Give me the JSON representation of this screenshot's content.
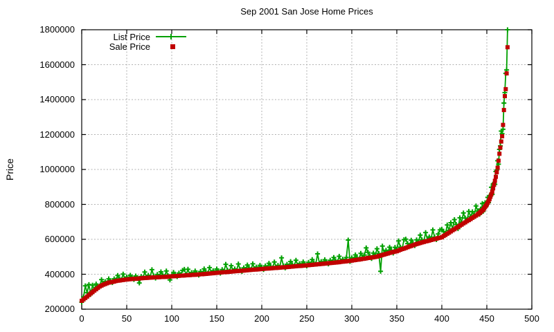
{
  "chart_data": {
    "type": "scatter",
    "title": "Sep 2001 San Jose Home Prices",
    "xlabel": "",
    "ylabel": "Price",
    "xlim": [
      0,
      500
    ],
    "ylim": [
      200000,
      1800000
    ],
    "x_ticks": [
      0,
      50,
      100,
      150,
      200,
      250,
      300,
      350,
      400,
      450,
      500
    ],
    "y_ticks": [
      200000,
      400000,
      600000,
      800000,
      1000000,
      1200000,
      1400000,
      1600000,
      1800000
    ],
    "grid": true,
    "grid_color": "#b0b0b0",
    "border_color": "#000000",
    "legend_position": "top-left-inside",
    "x": [
      0,
      2,
      4,
      6,
      8,
      10,
      12,
      14,
      16,
      18,
      20,
      22,
      24,
      26,
      28,
      30,
      32,
      34,
      36,
      38,
      40,
      42,
      44,
      46,
      48,
      50,
      52,
      54,
      56,
      58,
      60,
      62,
      64,
      66,
      68,
      70,
      72,
      74,
      76,
      78,
      80,
      82,
      84,
      86,
      88,
      90,
      92,
      94,
      96,
      98,
      100,
      102,
      104,
      106,
      108,
      110,
      112,
      114,
      116,
      118,
      120,
      122,
      124,
      126,
      128,
      130,
      132,
      134,
      136,
      138,
      140,
      142,
      144,
      146,
      148,
      150,
      152,
      154,
      156,
      158,
      160,
      162,
      164,
      166,
      168,
      170,
      172,
      174,
      176,
      178,
      180,
      182,
      184,
      186,
      188,
      190,
      192,
      194,
      196,
      198,
      200,
      202,
      204,
      206,
      208,
      210,
      212,
      214,
      216,
      218,
      220,
      222,
      224,
      226,
      228,
      230,
      232,
      234,
      236,
      238,
      240,
      242,
      244,
      246,
      248,
      250,
      252,
      254,
      256,
      258,
      260,
      262,
      264,
      266,
      268,
      270,
      272,
      274,
      276,
      278,
      280,
      282,
      284,
      286,
      288,
      290,
      292,
      294,
      296,
      298,
      300,
      302,
      304,
      306,
      308,
      310,
      312,
      314,
      316,
      318,
      320,
      322,
      324,
      326,
      328,
      330,
      332,
      334,
      336,
      338,
      340,
      342,
      344,
      346,
      348,
      350,
      352,
      354,
      356,
      358,
      360,
      362,
      364,
      366,
      368,
      370,
      372,
      374,
      376,
      378,
      380,
      382,
      384,
      386,
      388,
      390,
      392,
      394,
      396,
      398,
      400,
      402,
      404,
      406,
      408,
      410,
      412,
      414,
      416,
      418,
      420,
      422,
      424,
      426,
      428,
      430,
      432,
      434,
      436,
      438,
      440,
      441,
      442,
      443,
      444,
      445,
      446,
      447,
      448,
      449,
      450,
      451,
      452,
      453,
      454,
      455,
      456,
      457,
      458,
      459,
      460,
      461,
      462,
      463,
      464,
      465,
      466,
      467,
      468,
      469,
      470,
      471,
      472,
      473
    ],
    "series": [
      {
        "name": "List Price",
        "style": "linespoints",
        "marker": "plus",
        "color": "#00a000",
        "values": [
          240000,
          270000,
          334000,
          294000,
          341000,
          286000,
          338000,
          312000,
          344000,
          332000,
          332000,
          369000,
          345000,
          358000,
          351000,
          374000,
          362000,
          352000,
          374000,
          367000,
          393000,
          374000,
          368000,
          401000,
          374000,
          384000,
          374000,
          394000,
          381000,
          370000,
          390000,
          381000,
          350000,
          387000,
          380000,
          413000,
          384000,
          394000,
          384000,
          426000,
          390000,
          378000,
          399000,
          389000,
          414000,
          394000,
          387000,
          419000,
          391000,
          367000,
          391000,
          411000,
          397000,
          386000,
          407000,
          398000,
          422000,
          428000,
          396000,
          429000,
          400000,
          410000,
          400000,
          419000,
          406000,
          395000,
          416000,
          406000,
          431000,
          412000,
          405000,
          438000,
          410000,
          420000,
          410000,
          430000,
          417000,
          406000,
          427000,
          418000,
          457000,
          423000,
          416000,
          449000,
          421000,
          431000,
          421000,
          459000,
          427000,
          416000,
          437000,
          428000,
          453000,
          434000,
          427000,
          460000,
          432000,
          441000,
          431000,
          451000,
          438000,
          427000,
          448000,
          439000,
          463000,
          444000,
          437000,
          470000,
          441000,
          451000,
          441000,
          494000,
          448000,
          436000,
          457000,
          448000,
          473000,
          454000,
          447000,
          480000,
          452000,
          461000,
          451000,
          471000,
          458000,
          447000,
          468000,
          459000,
          484000,
          465000,
          458000,
          517000,
          463000,
          473000,
          463000,
          483000,
          470000,
          459000,
          480000,
          471000,
          496000,
          477000,
          470000,
          503000,
          476000,
          486000,
          476000,
          496000,
          596000,
          473000,
          494000,
          486000,
          511000,
          493000,
          486000,
          520000,
          496000,
          510000,
          551000,
          526000,
          506000,
          490000,
          521000,
          508000,
          546000,
          519000,
          417000,
          561000,
          521000,
          537000,
          524000,
          555000,
          537000,
          521000,
          554000,
          541000,
          591000,
          555000,
          547000,
          598000,
          601000,
          576000,
          564000,
          595000,
          578000,
          564000,
          597000,
          585000,
          624000,
          597000,
          588000,
          639000,
          598000,
          614000,
          601000,
          654000,
          613000,
          598000,
          631000,
          654000,
          657000,
          644000,
          630000,
          682000,
          651000,
          695000,
          660000,
          713000,
          685000,
          661000,
          723000,
          699000,
          751000,
          722000,
          709000,
          760000,
          729000,
          758000,
          737000,
          791000,
          762000,
          759000,
          743000,
          774000,
          766000,
          805000,
          760000,
          792000,
          810000,
          787000,
          812000,
          840000,
          810000,
          850000,
          852000,
          898000,
          857000,
          917000,
          922000,
          915000,
          988000,
          996000,
          1050000,
          1030000,
          1115000,
          1135000,
          1220000,
          1205000,
          1230000,
          1380000,
          1440000,
          1550000,
          1570000,
          1800000
        ]
      },
      {
        "name": "Sale Price",
        "style": "points",
        "marker": "square",
        "color": "#c00000",
        "values": [
          248000,
          256000,
          264000,
          272000,
          281000,
          290000,
          298000,
          306000,
          314000,
          322000,
          330000,
          335000,
          340000,
          344000,
          348000,
          352000,
          354000,
          356000,
          358000,
          361000,
          363000,
          364000,
          366000,
          367000,
          369000,
          370000,
          371000,
          372000,
          373000,
          374000,
          374000,
          375000,
          376000,
          377000,
          378000,
          379000,
          379000,
          380000,
          381000,
          381000,
          382000,
          382000,
          383000,
          383000,
          384000,
          384000,
          385000,
          385000,
          386000,
          387000,
          388000,
          389000,
          389000,
          390000,
          391000,
          392000,
          392000,
          393000,
          394000,
          395000,
          395000,
          396000,
          397000,
          397000,
          398000,
          399000,
          400000,
          400000,
          401000,
          402000,
          403000,
          404000,
          405000,
          406000,
          407000,
          408000,
          409000,
          410000,
          411000,
          412000,
          412000,
          413000,
          414000,
          415000,
          416000,
          417000,
          418000,
          419000,
          419000,
          420000,
          421000,
          422000,
          423000,
          424000,
          425000,
          426000,
          427000,
          427000,
          428000,
          429000,
          430000,
          431000,
          432000,
          433000,
          433000,
          434000,
          435000,
          436000,
          436000,
          437000,
          438000,
          439000,
          440000,
          440000,
          441000,
          442000,
          443000,
          444000,
          445000,
          446000,
          447000,
          447000,
          448000,
          449000,
          450000,
          451000,
          452000,
          453000,
          454000,
          455000,
          456000,
          457000,
          458000,
          459000,
          460000,
          461000,
          462000,
          463000,
          464000,
          465000,
          466000,
          467000,
          468000,
          469000,
          471000,
          472000,
          473000,
          474000,
          476000,
          477000,
          478000,
          480000,
          481000,
          483000,
          484000,
          486000,
          488000,
          489000,
          491000,
          493000,
          494000,
          496000,
          497000,
          499000,
          501000,
          504000,
          507000,
          510000,
          513000,
          516000,
          519000,
          522000,
          525000,
          527000,
          530000,
          532000,
          536000,
          540000,
          544000,
          547000,
          551000,
          555000,
          559000,
          562000,
          566000,
          570000,
          573000,
          576000,
          579000,
          582000,
          585000,
          588000,
          590000,
          593000,
          596000,
          599000,
          601000,
          604000,
          607000,
          609000,
          612000,
          619000,
          625000,
          632000,
          638000,
          645000,
          652000,
          658000,
          665000,
          671000,
          678000,
          684000,
          691000,
          697000,
          704000,
          710000,
          716000,
          723000,
          729000,
          736000,
          742000,
          747000,
          751000,
          756000,
          761000,
          765000,
          770000,
          777000,
          785000,
          792000,
          800000,
          810000,
          820000,
          830000,
          844000,
          858000,
          872000,
          892000,
          912000,
          935000,
          958000,
          984000,
          1010000,
          1050000,
          1090000,
          1125000,
          1160000,
          1190000,
          1255000,
          1340000,
          1420000,
          1460000,
          1550000,
          1700000
        ]
      }
    ]
  },
  "colors": {
    "background": "#ffffff",
    "text": "#000000",
    "list_price": "#00a000",
    "sale_price": "#c00000",
    "grid": "#b0b0b0"
  }
}
